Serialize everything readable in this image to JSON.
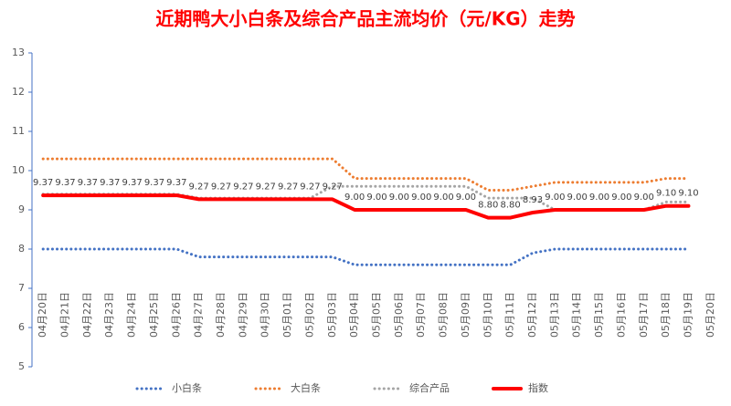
{
  "chart_data": {
    "type": "line",
    "title": "近期鸭大小白条及综合产品主流均价（元/KG）走势",
    "categories": [
      "04月20日",
      "04月21日",
      "04月22日",
      "04月23日",
      "04月24日",
      "04月25日",
      "04月26日",
      "04月27日",
      "04月28日",
      "04月29日",
      "04月30日",
      "05月01日",
      "05月02日",
      "05月03日",
      "05月04日",
      "05月05日",
      "05月06日",
      "05月07日",
      "05月08日",
      "05月09日",
      "05月10日",
      "05月11日",
      "05月12日",
      "05月13日",
      "05月14日",
      "05月15日",
      "05月16日",
      "05月17日",
      "05月18日",
      "05月19日",
      "05月20日"
    ],
    "series": [
      {
        "name": "小白条",
        "color": "#4472c4",
        "style": "dotted",
        "values": [
          8.0,
          8.0,
          8.0,
          8.0,
          8.0,
          8.0,
          8.0,
          7.8,
          7.8,
          7.8,
          7.8,
          7.8,
          7.8,
          7.8,
          7.6,
          7.6,
          7.6,
          7.6,
          7.6,
          7.6,
          7.6,
          7.6,
          7.9,
          8.0,
          8.0,
          8.0,
          8.0,
          8.0,
          8.0,
          8.0,
          null
        ]
      },
      {
        "name": "大白条",
        "color": "#ed7d31",
        "style": "dotted",
        "values": [
          10.3,
          10.3,
          10.3,
          10.3,
          10.3,
          10.3,
          10.3,
          10.3,
          10.3,
          10.3,
          10.3,
          10.3,
          10.3,
          10.3,
          9.8,
          9.8,
          9.8,
          9.8,
          9.8,
          9.8,
          9.5,
          9.5,
          9.6,
          9.7,
          9.7,
          9.7,
          9.7,
          9.7,
          9.8,
          9.8,
          null
        ]
      },
      {
        "name": "综合产品",
        "color": "#a5a5a5",
        "style": "dotted",
        "values": [
          9.4,
          9.4,
          9.4,
          9.4,
          9.4,
          9.4,
          9.4,
          9.3,
          9.3,
          9.3,
          9.3,
          9.3,
          9.3,
          9.6,
          9.6,
          9.6,
          9.6,
          9.6,
          9.6,
          9.6,
          9.3,
          9.3,
          9.3,
          9.0,
          9.0,
          9.0,
          9.0,
          9.0,
          9.2,
          9.2,
          null
        ]
      },
      {
        "name": "指数",
        "color": "#ff0000",
        "style": "solid",
        "values": [
          9.37,
          9.37,
          9.37,
          9.37,
          9.37,
          9.37,
          9.37,
          9.27,
          9.27,
          9.27,
          9.27,
          9.27,
          9.27,
          9.27,
          9.0,
          9.0,
          9.0,
          9.0,
          9.0,
          9.0,
          8.8,
          8.8,
          8.93,
          9.0,
          9.0,
          9.0,
          9.0,
          9.0,
          9.1,
          9.1,
          null
        ],
        "value_labels": [
          "9.37",
          "9.37",
          "9.37",
          "9.37",
          "9.37",
          "9.37",
          "9.37",
          "9.27",
          "9.27",
          "9.27",
          "9.27",
          "9.27",
          "9.27",
          "9.27",
          "9.00",
          "9.00",
          "9.00",
          "9.00",
          "9.00",
          "9.00",
          "8.80",
          "8.80",
          "8.93",
          "9.00",
          "9.00",
          "9.00",
          "9.00",
          "9.00",
          "9.10",
          "9.10",
          null
        ]
      }
    ],
    "ylim": [
      5,
      13
    ],
    "yticks": [
      5,
      6,
      7,
      8,
      9,
      10,
      11,
      12,
      13
    ],
    "legend": "bottom"
  }
}
